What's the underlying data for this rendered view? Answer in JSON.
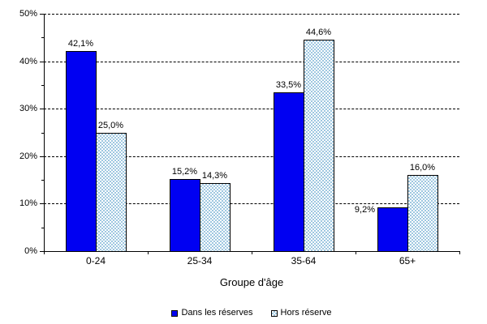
{
  "chart_data": {
    "type": "bar",
    "title": "",
    "xlabel": "Groupe d'âge",
    "ylabel": "",
    "categories": [
      "0-24",
      "25-34",
      "35-64",
      "65+"
    ],
    "series": [
      {
        "name": "Dans les réserves",
        "values": [
          42.1,
          15.2,
          33.5,
          9.2
        ],
        "labels": [
          "42,1%",
          "15,2%",
          "33,5%",
          "9,2%"
        ],
        "label_side": [
          "top",
          "top",
          "top",
          "left"
        ],
        "color": "#0000f2",
        "fill": "solid"
      },
      {
        "name": "Hors réserve",
        "values": [
          25.0,
          14.3,
          44.6,
          16.0
        ],
        "labels": [
          "25,0%",
          "14,3%",
          "44,6%",
          "16,0%"
        ],
        "label_side": [
          "top",
          "top",
          "top",
          "top"
        ],
        "color": "#9ec7e0",
        "fill": "checker"
      }
    ],
    "ylim": [
      0,
      50
    ],
    "ytick_step": 10,
    "minor_tick_step": 5,
    "ytick_labels": [
      "0%",
      "10%",
      "20%",
      "30%",
      "40%",
      "50%"
    ],
    "grid": "dashed-horizontal",
    "legend_position": "bottom",
    "background": "#ffffff",
    "axis_color": "#000000"
  }
}
